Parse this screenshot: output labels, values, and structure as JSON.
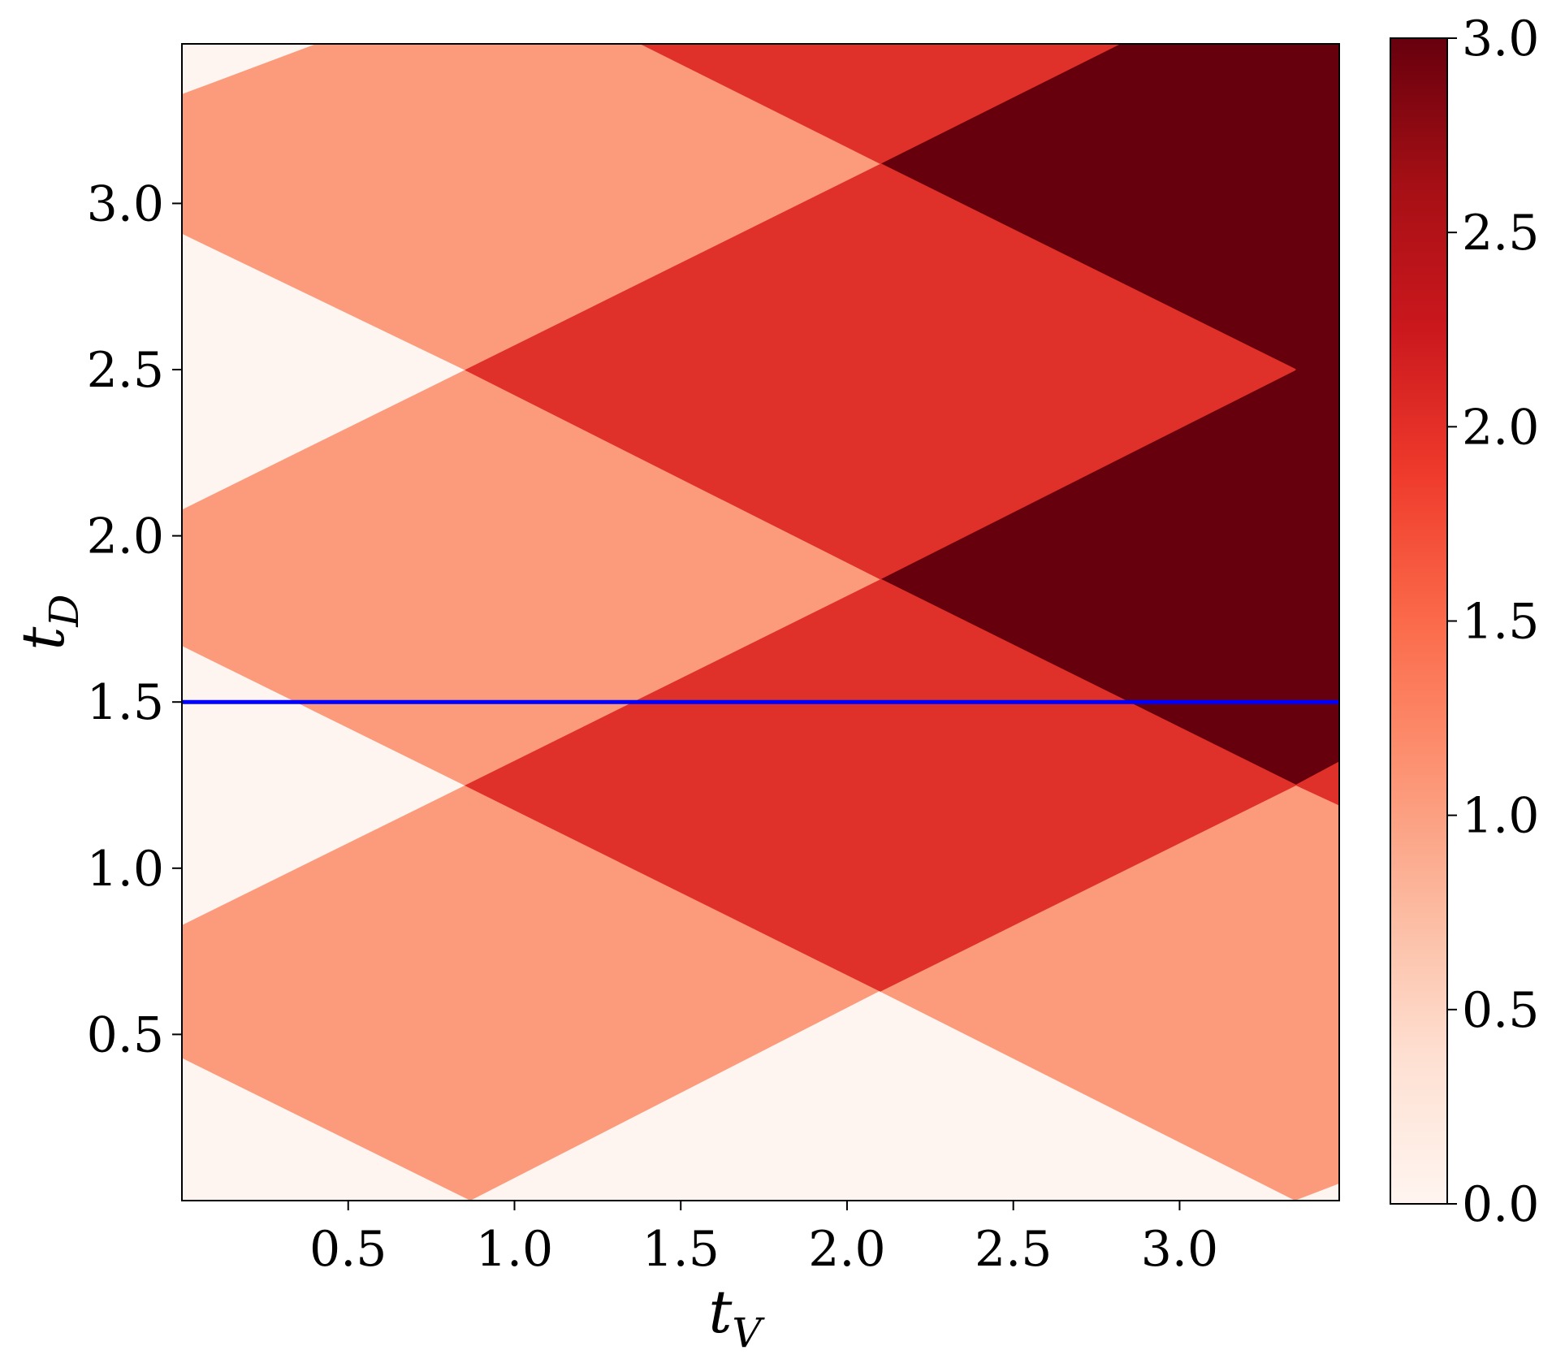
{
  "chart_data": {
    "type": "heatmap",
    "x_label": {
      "base": "t",
      "sub": "V"
    },
    "y_label": {
      "base": "t",
      "sub": "D"
    },
    "x_range": [
      0.0,
      3.48
    ],
    "y_range": [
      0.0,
      3.48
    ],
    "x_ticks": [
      0.5,
      1.0,
      1.5,
      2.0,
      2.5,
      3.0
    ],
    "x_tick_labels": [
      "0.5",
      "1.0",
      "1.5",
      "2.0",
      "2.5",
      "3.0"
    ],
    "y_ticks": [
      0.5,
      1.0,
      1.5,
      2.0,
      2.5,
      3.0
    ],
    "y_tick_labels": [
      "0.5",
      "1.0",
      "1.5",
      "2.0",
      "2.5",
      "3.0"
    ],
    "colorbar": {
      "range": [
        0.0,
        3.0
      ],
      "ticks": [
        0.0,
        0.5,
        1.0,
        1.5,
        2.0,
        2.5,
        3.0
      ],
      "tick_labels": [
        "0.0",
        "0.5",
        "1.0",
        "1.5",
        "2.0",
        "2.5",
        "3.0"
      ],
      "colormap": "Reds"
    },
    "value_colors": {
      "0": "#fff5f0",
      "1": "#fc9b7c",
      "2": "#e0302a",
      "3": "#67000d"
    },
    "regions": [
      {
        "value": 3,
        "polygon": [
          [
            0.0,
            0.0
          ],
          [
            3.48,
            0.0
          ],
          [
            3.48,
            3.48
          ],
          [
            0.0,
            3.48
          ]
        ]
      },
      {
        "value": 0,
        "polygon": [
          [
            0.0,
            0.0
          ],
          [
            0.0,
            0.43
          ],
          [
            0.87,
            0.0
          ]
        ]
      },
      {
        "value": 1,
        "polygon": [
          [
            0.0,
            0.43
          ],
          [
            0.0,
            0.83
          ],
          [
            0.85,
            1.25
          ],
          [
            2.1,
            0.63
          ],
          [
            0.87,
            0.0
          ]
        ]
      },
      {
        "value": 0,
        "polygon": [
          [
            0.87,
            0.0
          ],
          [
            2.1,
            0.63
          ],
          [
            3.35,
            0.0
          ]
        ]
      },
      {
        "value": 1,
        "polygon": [
          [
            2.1,
            0.63
          ],
          [
            3.35,
            1.25
          ],
          [
            3.48,
            1.19
          ],
          [
            3.48,
            0.05
          ],
          [
            3.35,
            0.0
          ]
        ]
      },
      {
        "value": 0,
        "polygon": [
          [
            3.35,
            0.0
          ],
          [
            3.48,
            0.05
          ],
          [
            3.48,
            0.0
          ]
        ]
      },
      {
        "value": 0,
        "polygon": [
          [
            0.0,
            0.83
          ],
          [
            0.0,
            1.67
          ],
          [
            0.85,
            1.25
          ]
        ]
      },
      {
        "value": 2,
        "polygon": [
          [
            0.85,
            1.25
          ],
          [
            2.1,
            1.87
          ],
          [
            3.35,
            1.25
          ],
          [
            2.1,
            0.63
          ]
        ]
      },
      {
        "value": 2,
        "polygon": [
          [
            3.35,
            1.25
          ],
          [
            3.48,
            1.32
          ],
          [
            3.48,
            1.19
          ]
        ]
      },
      {
        "value": 1,
        "polygon": [
          [
            0.0,
            1.67
          ],
          [
            0.0,
            2.08
          ],
          [
            0.85,
            2.5
          ],
          [
            2.1,
            1.87
          ],
          [
            0.85,
            1.25
          ]
        ]
      },
      {
        "value": 2,
        "polygon": [
          [
            0.85,
            2.5
          ],
          [
            2.1,
            3.12
          ],
          [
            3.35,
            2.5
          ],
          [
            2.1,
            1.87
          ]
        ]
      },
      {
        "value": 0,
        "polygon": [
          [
            0.0,
            2.08
          ],
          [
            0.0,
            2.91
          ],
          [
            0.85,
            2.5
          ]
        ]
      },
      {
        "value": 1,
        "polygon": [
          [
            0.0,
            2.91
          ],
          [
            0.0,
            3.33
          ],
          [
            0.4,
            3.48
          ],
          [
            1.38,
            3.48
          ],
          [
            2.1,
            3.12
          ],
          [
            0.85,
            2.5
          ]
        ]
      },
      {
        "value": 0,
        "polygon": [
          [
            0.0,
            3.33
          ],
          [
            0.0,
            3.48
          ],
          [
            0.4,
            3.48
          ]
        ]
      },
      {
        "value": 2,
        "polygon": [
          [
            1.38,
            3.48
          ],
          [
            2.82,
            3.48
          ],
          [
            2.1,
            3.12
          ]
        ]
      },
      {
        "value": 3,
        "polygon": [
          [
            3.35,
            2.5
          ],
          [
            3.48,
            2.57
          ],
          [
            3.48,
            2.43
          ]
        ]
      }
    ],
    "horizontal_line": {
      "y": 1.5,
      "color": "#0000ff"
    }
  }
}
